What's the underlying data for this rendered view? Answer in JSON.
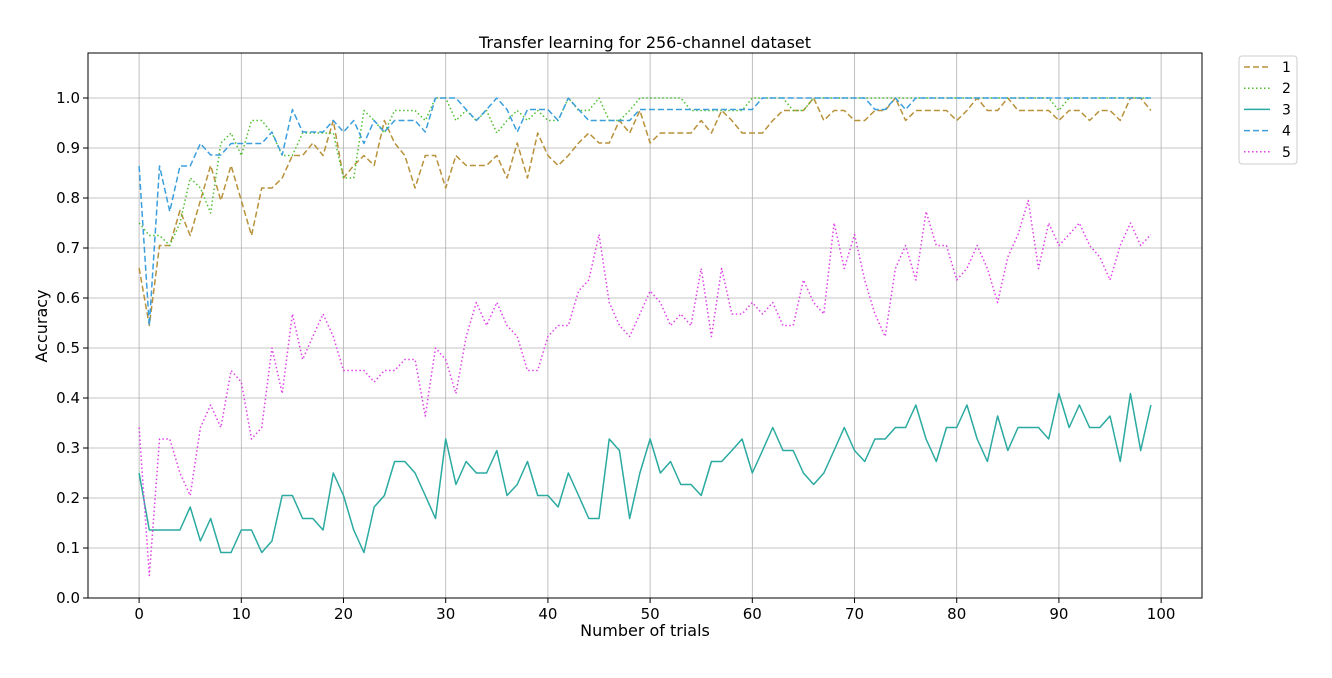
{
  "chart_data": {
    "type": "line",
    "title": "Transfer learning for 256-channel dataset",
    "xlabel": "Number of trials",
    "ylabel": "Accuracy",
    "xlim": [
      -5,
      104
    ],
    "ylim": [
      0.0,
      1.09
    ],
    "xticks": [
      0,
      10,
      20,
      30,
      40,
      50,
      60,
      70,
      80,
      90,
      100
    ],
    "yticks": [
      0.0,
      0.1,
      0.2,
      0.3,
      0.4,
      0.5,
      0.6,
      0.7,
      0.8,
      0.9,
      1.0
    ],
    "grid": true,
    "legend_position": "outside-top-right",
    "series": [
      {
        "name": "1",
        "color": "#b8913a",
        "dash": "dashed",
        "values": [
          0.66,
          0.545,
          0.705,
          0.705,
          0.775,
          0.725,
          0.795,
          0.865,
          0.795,
          0.865,
          0.795,
          0.725,
          0.82,
          0.82,
          0.84,
          0.885,
          0.885,
          0.91,
          0.885,
          0.955,
          0.84,
          0.865,
          0.885,
          0.865,
          0.955,
          0.91,
          0.885,
          0.82,
          0.885,
          0.885,
          0.82,
          0.885,
          0.865,
          0.865,
          0.865,
          0.885,
          0.84,
          0.91,
          0.84,
          0.93,
          0.885,
          0.865,
          0.885,
          0.91,
          0.93,
          0.91,
          0.91,
          0.955,
          0.93,
          0.975,
          0.91,
          0.93,
          0.93,
          0.93,
          0.93,
          0.955,
          0.93,
          0.975,
          0.955,
          0.93,
          0.93,
          0.93,
          0.955,
          0.975,
          0.975,
          0.975,
          1.0,
          0.955,
          0.975,
          0.975,
          0.955,
          0.955,
          0.975,
          0.975,
          1.0,
          0.955,
          0.975,
          0.975,
          0.975,
          0.975,
          0.955,
          0.975,
          1.0,
          0.975,
          0.975,
          1.0,
          0.975,
          0.975,
          0.975,
          0.975,
          0.955,
          0.975,
          0.975,
          0.955,
          0.975,
          0.975,
          0.955,
          1.0,
          1.0,
          0.975
        ]
      },
      {
        "name": "2",
        "color": "#4fbf30",
        "dash": "dotted",
        "values": [
          0.75,
          0.725,
          0.725,
          0.705,
          0.75,
          0.84,
          0.82,
          0.77,
          0.91,
          0.93,
          0.885,
          0.955,
          0.955,
          0.93,
          0.885,
          0.885,
          0.93,
          0.93,
          0.93,
          0.93,
          0.84,
          0.84,
          0.975,
          0.955,
          0.93,
          0.975,
          0.975,
          0.975,
          0.955,
          1.0,
          1.0,
          0.955,
          0.975,
          0.955,
          0.975,
          0.93,
          0.955,
          0.975,
          0.955,
          0.975,
          0.955,
          0.955,
          1.0,
          0.975,
          0.975,
          1.0,
          0.955,
          0.955,
          0.975,
          1.0,
          1.0,
          1.0,
          1.0,
          1.0,
          0.975,
          0.975,
          0.975,
          0.975,
          0.975,
          0.975,
          1.0,
          1.0,
          1.0,
          1.0,
          0.975,
          0.975,
          1.0,
          1.0,
          1.0,
          1.0,
          1.0,
          1.0,
          1.0,
          1.0,
          1.0,
          1.0,
          1.0,
          1.0,
          1.0,
          1.0,
          1.0,
          1.0,
          1.0,
          1.0,
          1.0,
          1.0,
          1.0,
          1.0,
          1.0,
          1.0,
          0.975,
          1.0,
          1.0,
          1.0,
          1.0,
          1.0,
          1.0,
          1.0,
          1.0,
          1.0
        ]
      },
      {
        "name": "3",
        "color": "#2aaaa0",
        "dash": "solid",
        "values": [
          0.25,
          0.136,
          0.136,
          0.136,
          0.136,
          0.182,
          0.114,
          0.159,
          0.091,
          0.091,
          0.136,
          0.136,
          0.091,
          0.114,
          0.205,
          0.205,
          0.159,
          0.159,
          0.136,
          0.25,
          0.205,
          0.136,
          0.091,
          0.182,
          0.205,
          0.273,
          0.273,
          0.25,
          0.205,
          0.159,
          0.318,
          0.227,
          0.273,
          0.25,
          0.25,
          0.295,
          0.205,
          0.227,
          0.273,
          0.205,
          0.205,
          0.182,
          0.25,
          0.205,
          0.159,
          0.159,
          0.318,
          0.295,
          0.159,
          0.25,
          0.318,
          0.25,
          0.273,
          0.227,
          0.227,
          0.205,
          0.273,
          0.273,
          0.295,
          0.318,
          0.25,
          0.295,
          0.341,
          0.295,
          0.295,
          0.25,
          0.227,
          0.25,
          0.295,
          0.341,
          0.295,
          0.273,
          0.318,
          0.318,
          0.341,
          0.341,
          0.386,
          0.318,
          0.273,
          0.341,
          0.341,
          0.386,
          0.318,
          0.273,
          0.364,
          0.295,
          0.341,
          0.341,
          0.341,
          0.318,
          0.409,
          0.341,
          0.386,
          0.341,
          0.341,
          0.364,
          0.273,
          0.409,
          0.295,
          0.386
        ]
      },
      {
        "name": "4",
        "color": "#3b9fdd",
        "dash": "dashed",
        "values": [
          0.864,
          0.545,
          0.864,
          0.773,
          0.864,
          0.864,
          0.909,
          0.886,
          0.886,
          0.909,
          0.909,
          0.909,
          0.909,
          0.932,
          0.886,
          0.977,
          0.932,
          0.932,
          0.932,
          0.955,
          0.932,
          0.955,
          0.909,
          0.955,
          0.932,
          0.955,
          0.955,
          0.955,
          0.932,
          1.0,
          1.0,
          1.0,
          0.977,
          0.955,
          0.977,
          1.0,
          0.977,
          0.932,
          0.977,
          0.977,
          0.977,
          0.955,
          1.0,
          0.977,
          0.955,
          0.955,
          0.955,
          0.955,
          0.955,
          0.977,
          0.977,
          0.977,
          0.977,
          0.977,
          0.977,
          0.977,
          0.977,
          0.977,
          0.977,
          0.977,
          0.977,
          1.0,
          1.0,
          1.0,
          1.0,
          1.0,
          1.0,
          1.0,
          1.0,
          1.0,
          1.0,
          1.0,
          0.977,
          0.977,
          1.0,
          0.977,
          1.0,
          1.0,
          1.0,
          1.0,
          1.0,
          1.0,
          1.0,
          1.0,
          1.0,
          1.0,
          1.0,
          1.0,
          1.0,
          1.0,
          1.0,
          1.0,
          1.0,
          1.0,
          1.0,
          1.0,
          1.0,
          1.0,
          1.0,
          1.0
        ]
      },
      {
        "name": "5",
        "color": "#e040e8",
        "dash": "dotted",
        "values": [
          0.341,
          0.045,
          0.318,
          0.318,
          0.25,
          0.205,
          0.341,
          0.386,
          0.341,
          0.455,
          0.432,
          0.318,
          0.341,
          0.5,
          0.409,
          0.568,
          0.477,
          0.523,
          0.568,
          0.523,
          0.455,
          0.455,
          0.455,
          0.432,
          0.455,
          0.455,
          0.477,
          0.477,
          0.364,
          0.5,
          0.477,
          0.409,
          0.523,
          0.591,
          0.545,
          0.591,
          0.545,
          0.523,
          0.455,
          0.455,
          0.523,
          0.545,
          0.545,
          0.614,
          0.636,
          0.727,
          0.591,
          0.545,
          0.523,
          0.568,
          0.614,
          0.591,
          0.545,
          0.568,
          0.545,
          0.659,
          0.523,
          0.659,
          0.568,
          0.568,
          0.591,
          0.568,
          0.591,
          0.545,
          0.545,
          0.636,
          0.591,
          0.568,
          0.75,
          0.659,
          0.727,
          0.636,
          0.568,
          0.523,
          0.659,
          0.705,
          0.636,
          0.773,
          0.705,
          0.705,
          0.636,
          0.659,
          0.705,
          0.659,
          0.591,
          0.682,
          0.727,
          0.795,
          0.659,
          0.75,
          0.705,
          0.727,
          0.75,
          0.705,
          0.682,
          0.636,
          0.705,
          0.75,
          0.705,
          0.727
        ]
      }
    ]
  }
}
